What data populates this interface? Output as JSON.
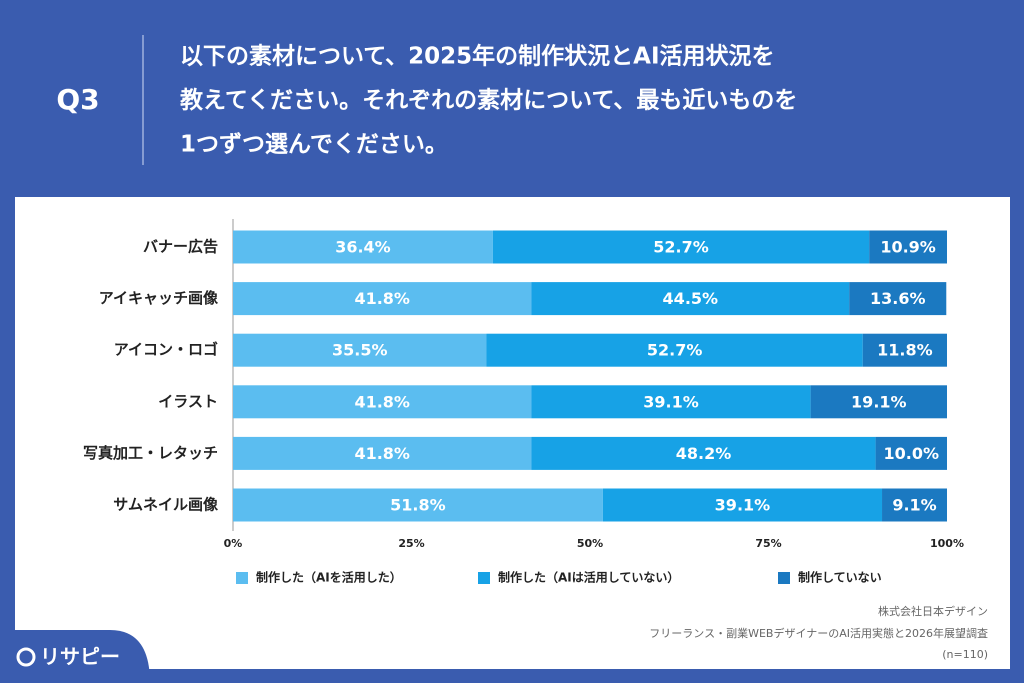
{
  "header": {
    "label": "Q3",
    "question": [
      "以下の素材について、2025年の制作状況とAI活用状況を",
      "教えてください。それぞれの素材について、最も近いものを",
      "1つずつ選んでください。"
    ]
  },
  "chart_data": {
    "type": "bar",
    "orientation": "horizontal",
    "stacked": true,
    "categories": [
      "バナー広告",
      "アイキャッチ画像",
      "アイコン・ロゴ",
      "イラスト",
      "写真加工・レタッチ",
      "サムネイル画像"
    ],
    "series": [
      {
        "name": "制作した（AIを活用した）",
        "color": "#5bbdf0",
        "values": [
          36.4,
          41.8,
          35.5,
          41.8,
          41.8,
          51.8
        ],
        "value_labels": [
          "36.4%",
          "41.8%",
          "35.5%",
          "41.8%",
          "41.8%",
          "51.8%"
        ]
      },
      {
        "name": "制作した（AIは活用していない）",
        "color": "#17a2e6",
        "values": [
          52.7,
          44.5,
          52.7,
          39.1,
          48.2,
          39.1
        ],
        "value_labels": [
          "52.7%",
          "44.5%",
          "52.7%",
          "39.1%",
          "48.2%",
          "39.1%"
        ]
      },
      {
        "name": "制作していない",
        "color": "#1b79c1",
        "values": [
          10.9,
          13.6,
          11.8,
          19.1,
          10.0,
          9.1
        ],
        "value_labels": [
          "10.9%",
          "13.6%",
          "11.8%",
          "19.1%",
          "10.0%",
          "9.1%"
        ]
      }
    ],
    "xlim": [
      0,
      100
    ],
    "xticks": [
      {
        "value": 0,
        "label": "0%"
      },
      {
        "value": 25,
        "label": "25%"
      },
      {
        "value": 50,
        "label": "50%"
      },
      {
        "value": 75,
        "label": "75%"
      },
      {
        "value": 100,
        "label": "100%"
      }
    ],
    "legend": "bottom"
  },
  "footer": {
    "company": "株式会社日本デザイン",
    "survey": "フリーランス・副業WEBデザイナーのAI活用実態と2026年展望調査",
    "sample": "(n=110)"
  },
  "logo": "リサピー"
}
